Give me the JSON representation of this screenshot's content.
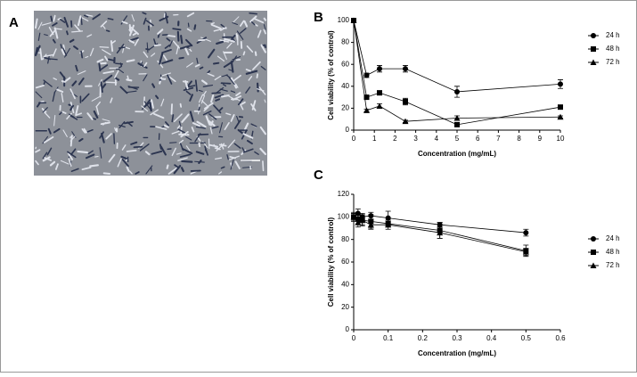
{
  "panel_labels": [
    "A",
    "B",
    "C"
  ],
  "chart_data": [
    {
      "type": "line",
      "x_label": "Concentration (mg/mL)",
      "y_label": "Cell viability (% of control)",
      "x": [
        0,
        0.625,
        1.25,
        2.5,
        5,
        10
      ],
      "series": [
        {
          "name": "24 h",
          "color": "#000000",
          "marker": "circle",
          "values": [
            100,
            50,
            56,
            56,
            35,
            42
          ],
          "errors": [
            1,
            2,
            3,
            3,
            5,
            4
          ]
        },
        {
          "name": "48 h",
          "color": "#000000",
          "marker": "square",
          "values": [
            100,
            30,
            34,
            26,
            5,
            21
          ],
          "errors": [
            1,
            1,
            2,
            3,
            1,
            1
          ]
        },
        {
          "name": "72 h",
          "color": "#000000",
          "marker": "triangle",
          "values": [
            100,
            18,
            22,
            8,
            11,
            12
          ],
          "errors": [
            1,
            1,
            2,
            1,
            2,
            1
          ]
        }
      ],
      "xlim": [
        0,
        10
      ],
      "xticks": [
        0,
        1,
        2,
        3,
        4,
        5,
        6,
        7,
        8,
        9,
        10
      ],
      "ylim": [
        0,
        100
      ],
      "yticks": [
        0,
        20,
        40,
        60,
        80,
        100
      ],
      "legend": "right"
    },
    {
      "type": "line",
      "x_label": "Concentration (mg/mL)",
      "y_label": "Cell viability (% of control)",
      "x": [
        0,
        0.0125,
        0.025,
        0.05,
        0.1,
        0.25,
        0.5
      ],
      "series": [
        {
          "name": "24 h",
          "color": "#000000",
          "marker": "circle",
          "values": [
            100,
            103,
            100,
            101,
            99,
            93,
            86
          ],
          "errors": [
            3,
            4,
            3,
            3,
            6,
            2,
            3
          ]
        },
        {
          "name": "48 h",
          "color": "#000000",
          "marker": "square",
          "values": [
            100,
            98,
            97,
            96,
            94,
            88,
            70
          ],
          "errors": [
            4,
            5,
            4,
            6,
            3,
            7,
            5
          ]
        },
        {
          "name": "72 h",
          "color": "#000000",
          "marker": "triangle",
          "values": [
            100,
            95,
            97,
            93,
            93,
            86,
            69
          ],
          "errors": [
            3,
            4,
            5,
            4,
            4,
            5,
            3
          ]
        }
      ],
      "xlim": [
        0,
        0.6
      ],
      "xticks": [
        0,
        0.1,
        0.2,
        0.3,
        0.4,
        0.5,
        0.6
      ],
      "ylim": [
        0,
        120
      ],
      "yticks": [
        0,
        20,
        40,
        60,
        80,
        100,
        120
      ],
      "legend": "right"
    }
  ]
}
